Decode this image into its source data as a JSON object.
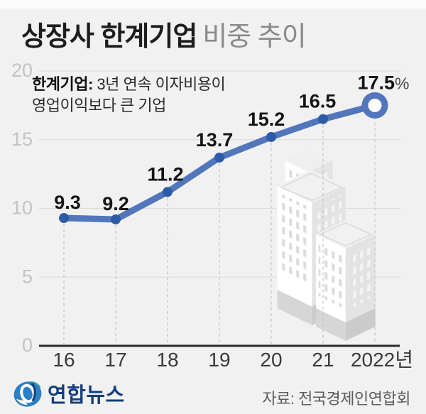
{
  "title": {
    "emphasis": "상장사 한계기업",
    "rest": "비중 추이"
  },
  "note": {
    "term": "한계기업:",
    "text1": "3년 연속 이자비용이",
    "text2": "영업이익보다 큰 기업"
  },
  "chart_data": {
    "type": "line",
    "title": "상장사 한계기업 비중 추이",
    "categories": [
      "16",
      "17",
      "18",
      "19",
      "20",
      "21",
      "2022년"
    ],
    "values": [
      9.3,
      9.2,
      11.2,
      13.7,
      15.2,
      16.5,
      17.5
    ],
    "point_labels": [
      "9.3",
      "9.2",
      "11.2",
      "13.7",
      "15.2",
      "16.5",
      "17.5"
    ],
    "last_value_suffix": "%",
    "xlabel": "",
    "ylabel": "",
    "ylim": [
      0,
      20
    ],
    "yticks": [
      0,
      5,
      10,
      15,
      20
    ],
    "grid": "horizontal",
    "legend": "none",
    "colors": {
      "line": "#5276bb",
      "point": "#2d5ba8",
      "grid": "#dedede",
      "axis": "#2b2b2b",
      "guide": "#c8c8c8",
      "tick_label": "#c3c3c3",
      "x_label": "#3a3a3a",
      "value_label": "#151515",
      "suffix": "#454545"
    }
  },
  "footer": {
    "logo": "연합뉴스",
    "source": "자료: 전국경제인연합회"
  },
  "icons": {
    "logo": "yonhap-globe-icon",
    "illustration": "buildings-illustration"
  }
}
